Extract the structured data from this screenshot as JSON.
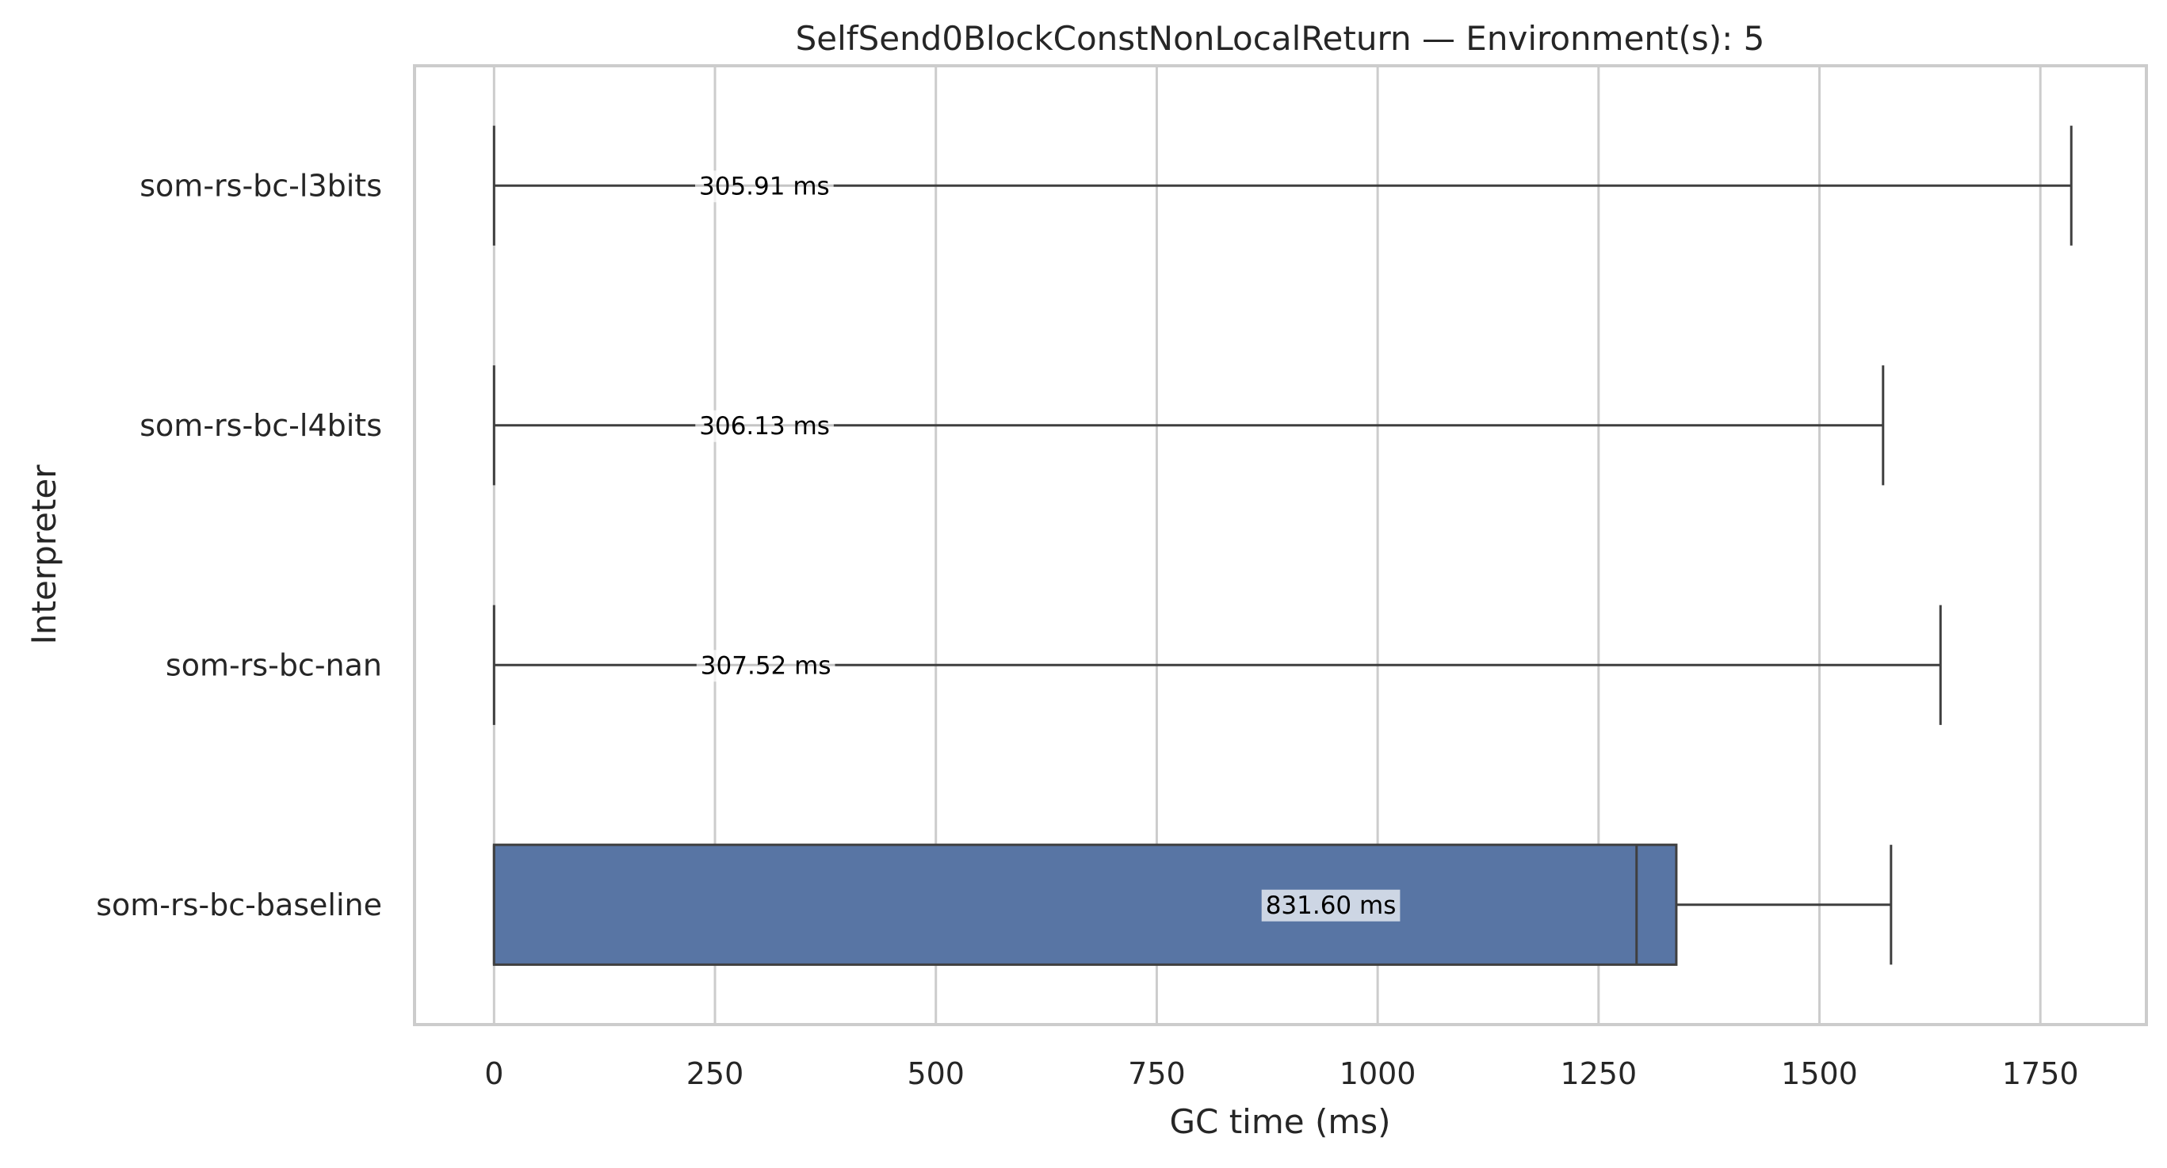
{
  "chart_data": {
    "type": "box",
    "title": "SelfSend0BlockConstNonLocalReturn — Environment(s): 5",
    "xlabel": "GC time (ms)",
    "ylabel": "Interpreter",
    "xlim": [
      -90,
      1870
    ],
    "xticks": [
      0,
      250,
      500,
      750,
      1000,
      1250,
      1500,
      1750
    ],
    "xtick_labels": [
      "0",
      "250",
      "500",
      "750",
      "1000",
      "1250",
      "1500",
      "1750"
    ],
    "grid": "vertical",
    "box_color": "#5875a4",
    "categories": [
      "som-rs-bc-l3bits",
      "som-rs-bc-l4bits",
      "som-rs-bc-nan",
      "som-rs-bc-baseline"
    ],
    "series": [
      {
        "category": "som-rs-bc-l3bits",
        "whisker_low": 0,
        "q1": 0,
        "median": 0,
        "q3": 0,
        "whisker_high": 1785,
        "mean_label": "305.91 ms"
      },
      {
        "category": "som-rs-bc-l4bits",
        "whisker_low": 0,
        "q1": 0,
        "median": 0,
        "q3": 0,
        "whisker_high": 1572,
        "mean_label": "306.13 ms"
      },
      {
        "category": "som-rs-bc-nan",
        "whisker_low": 0,
        "q1": 0,
        "median": 0,
        "q3": 0,
        "whisker_high": 1637,
        "mean_label": "307.52 ms"
      },
      {
        "category": "som-rs-bc-baseline",
        "whisker_low": 0,
        "q1": 0,
        "median": 1293,
        "q3": 1338,
        "whisker_high": 1581,
        "mean_label": "831.60 ms",
        "mean_label_position": 947
      }
    ]
  }
}
